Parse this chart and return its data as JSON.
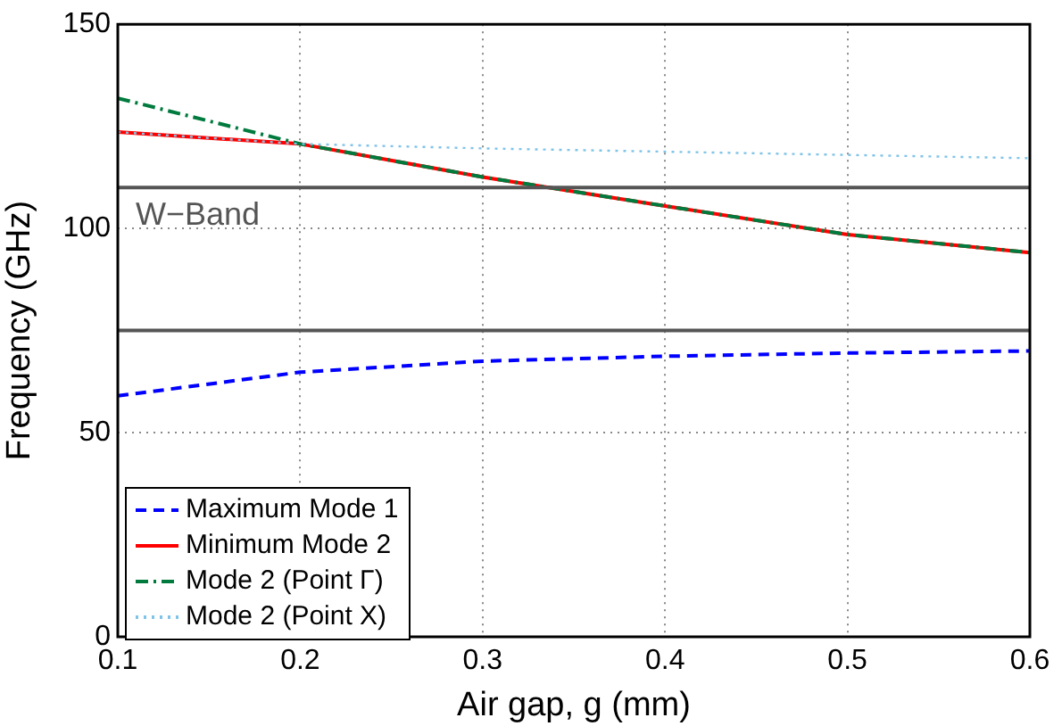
{
  "chart_data": {
    "type": "line",
    "xlabel": "Air gap, g (mm)",
    "ylabel": "Frequency (GHz)",
    "x": [
      0.1,
      0.2,
      0.3,
      0.4,
      0.5,
      0.6
    ],
    "xlim": [
      0.1,
      0.6
    ],
    "xticks": [
      0.1,
      0.2,
      0.3,
      0.4,
      0.5,
      0.6
    ],
    "ylim": [
      0,
      150
    ],
    "yticks": [
      0,
      50,
      100,
      150
    ],
    "grid": true,
    "legend": "bottom left",
    "marker": "none",
    "ref_lines": [
      {
        "axis": "y",
        "value": 110,
        "label": "W−Band",
        "color": "#555555"
      },
      {
        "axis": "y",
        "value": 75,
        "color": "#555555"
      }
    ],
    "series": [
      {
        "name": "Maximum Mode 1",
        "color": "#0000ff",
        "line_style": "dashed",
        "values": [
          59,
          64.8,
          67.5,
          68.7,
          69.5,
          70
        ]
      },
      {
        "name": "Minimum Mode 2",
        "color": "#ff0000",
        "line_style": "solid",
        "values": [
          123.6,
          120.7,
          112.6,
          105.5,
          98.5,
          94.1
        ]
      },
      {
        "name": "Mode 2 (Point Γ)",
        "color": "#007a3d",
        "line_style": "dashdot",
        "values": [
          131.9,
          120.7,
          112.6,
          105.5,
          98.5,
          94.1
        ]
      },
      {
        "name": "Mode 2 (Point X)",
        "color": "#7fc4e8",
        "line_style": "dotted",
        "values": [
          123.6,
          120.7,
          119.6,
          118.8,
          118,
          117.2
        ]
      }
    ]
  }
}
